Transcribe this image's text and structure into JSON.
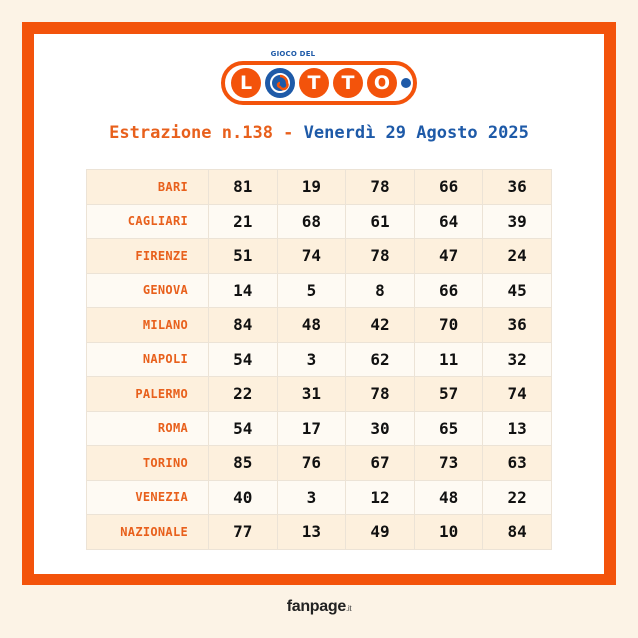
{
  "logo": {
    "supertitle": "GIOCO DEL",
    "letters": [
      "L",
      "T",
      "T",
      "O"
    ],
    "alt": "LOTTO"
  },
  "title": {
    "prefix": "Estrazione n.138",
    "separator": " - ",
    "date": "Venerdì 29 Agosto 2025"
  },
  "draws": [
    {
      "city": "BARI",
      "numbers": [
        "81",
        "19",
        "78",
        "66",
        "36"
      ]
    },
    {
      "city": "CAGLIARI",
      "numbers": [
        "21",
        "68",
        "61",
        "64",
        "39"
      ]
    },
    {
      "city": "FIRENZE",
      "numbers": [
        "51",
        "74",
        "78",
        "47",
        "24"
      ]
    },
    {
      "city": "GENOVA",
      "numbers": [
        "14",
        "5",
        "8",
        "66",
        "45"
      ]
    },
    {
      "city": "MILANO",
      "numbers": [
        "84",
        "48",
        "42",
        "70",
        "36"
      ]
    },
    {
      "city": "NAPOLI",
      "numbers": [
        "54",
        "3",
        "62",
        "11",
        "32"
      ]
    },
    {
      "city": "PALERMO",
      "numbers": [
        "22",
        "31",
        "78",
        "57",
        "74"
      ]
    },
    {
      "city": "ROMA",
      "numbers": [
        "54",
        "17",
        "30",
        "65",
        "13"
      ]
    },
    {
      "city": "TORINO",
      "numbers": [
        "85",
        "76",
        "67",
        "73",
        "63"
      ]
    },
    {
      "city": "VENEZIA",
      "numbers": [
        "40",
        "3",
        "12",
        "48",
        "22"
      ]
    },
    {
      "city": "NAZIONALE",
      "numbers": [
        "77",
        "13",
        "49",
        "10",
        "84"
      ]
    }
  ],
  "footer": {
    "brand": "fanpage",
    "tld": ".it"
  },
  "colors": {
    "accent_orange": "#f3530b",
    "city_orange": "#e8601c",
    "brand_blue": "#1e5aa8",
    "page_background": "#fcf3e6"
  }
}
